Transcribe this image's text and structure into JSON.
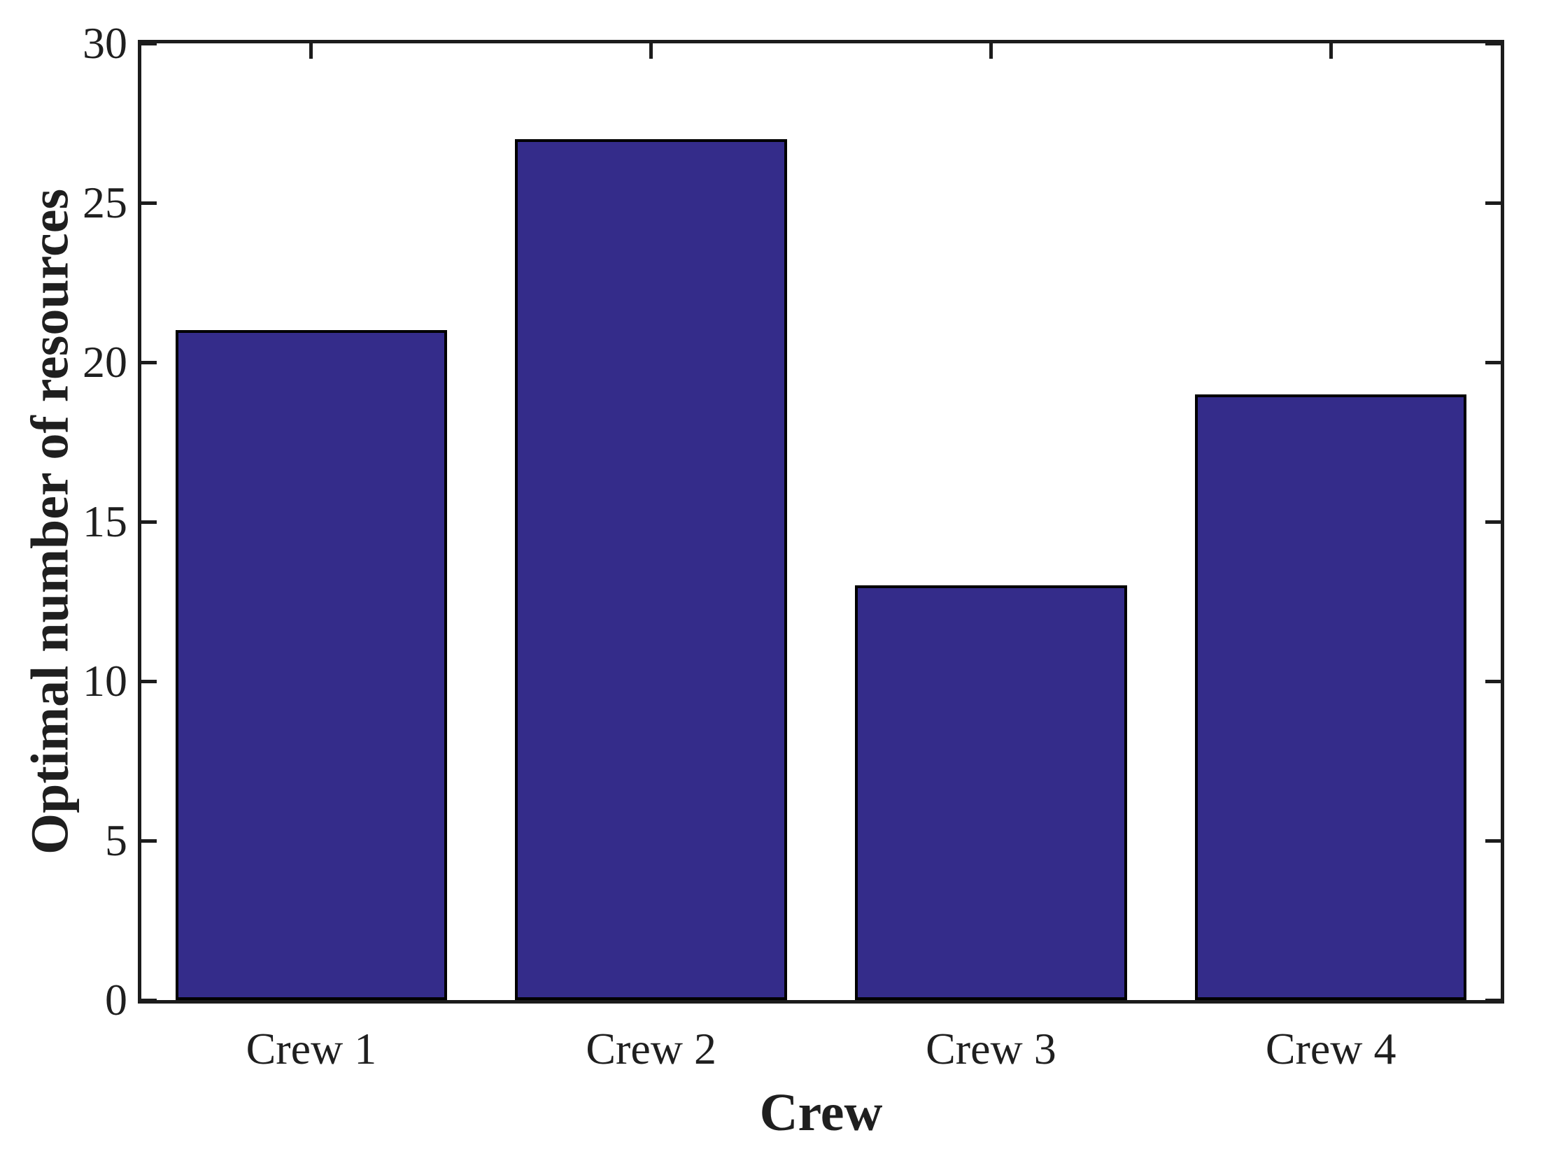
{
  "figure": {
    "background": "#ffffff",
    "axis_color": "#1c1c1c",
    "text_color": "#1f1f1f"
  },
  "chart_data": {
    "type": "bar",
    "categories": [
      "Crew 1",
      "Crew 2",
      "Crew 3",
      "Crew 4"
    ],
    "values": [
      21,
      27,
      13,
      19
    ],
    "title": "",
    "xlabel": "Crew",
    "ylabel": "Optimal number of resources",
    "ylim": [
      0,
      30
    ],
    "yticks": [
      0,
      5,
      10,
      15,
      20,
      25,
      30
    ],
    "bar_color": "#342C8A",
    "bar_edge_color": "#000000",
    "bar_width_fraction": 0.8,
    "grid": "off",
    "legend": "none",
    "box": "on",
    "tick_direction": "in"
  }
}
